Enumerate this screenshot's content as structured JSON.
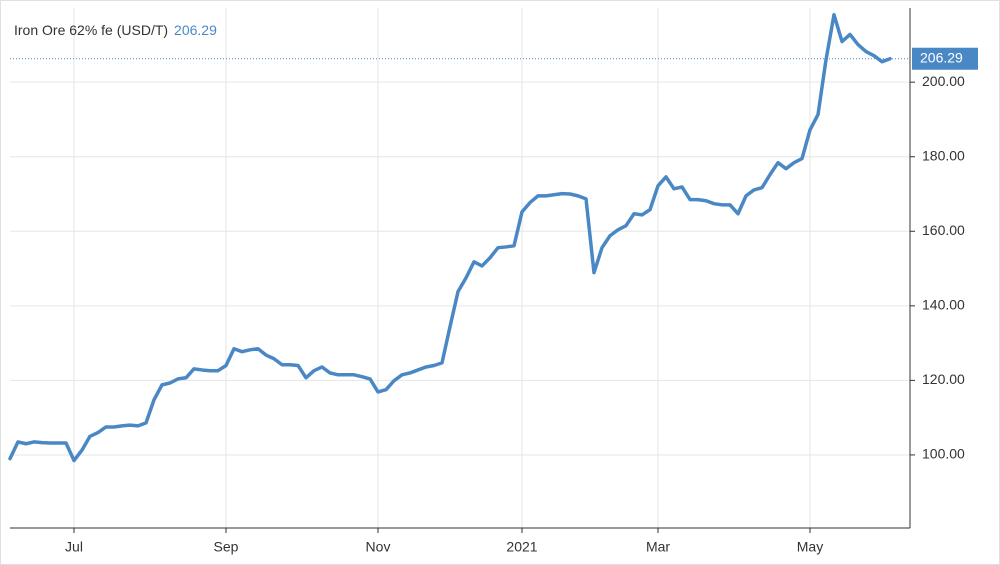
{
  "chart_data": {
    "type": "line",
    "title": "Iron Ore 62% fe (USD/T)",
    "last_value": 206.29,
    "color": "#4a88c5",
    "categories": [
      null,
      null,
      null,
      null,
      null,
      null,
      null,
      null,
      "Jul",
      null,
      null,
      null,
      null,
      null,
      null,
      null,
      null,
      null,
      null,
      null,
      null,
      null,
      null,
      null,
      null,
      null,
      null,
      "Sep",
      null,
      null,
      null,
      null,
      null,
      null,
      null,
      null,
      null,
      null,
      null,
      null,
      null,
      null,
      null,
      null,
      null,
      null,
      "Nov",
      null,
      null,
      null,
      null,
      null,
      null,
      null,
      null,
      null,
      null,
      null,
      null,
      null,
      null,
      null,
      null,
      null,
      "2021",
      null,
      null,
      null,
      null,
      null,
      null,
      null,
      null,
      null,
      null,
      null,
      null,
      null,
      null,
      null,
      null,
      "Mar",
      null,
      null,
      null,
      null,
      null,
      null,
      null,
      null,
      null,
      null,
      null,
      null,
      null,
      null,
      null,
      null,
      null,
      null,
      "May",
      null,
      null,
      null,
      null,
      null,
      null,
      null,
      null,
      null,
      null
    ],
    "values": [
      99,
      103.5,
      103,
      103.5,
      103.3,
      103.2,
      103.2,
      103.2,
      98.5,
      101.3,
      105,
      106,
      107.5,
      107.5,
      107.8,
      108,
      107.8,
      108.6,
      114.8,
      118.8,
      119.3,
      120.4,
      120.7,
      123.1,
      122.8,
      122.6,
      122.6,
      124,
      128.5,
      127.7,
      128.2,
      128.5,
      126.8,
      125.8,
      124.2,
      124.2,
      124,
      120.7,
      122.6,
      123.6,
      122,
      121.5,
      121.5,
      121.5,
      121,
      120.4,
      116.9,
      117.5,
      119.9,
      121.5,
      122,
      122.8,
      123.6,
      124,
      124.7,
      134.4,
      143.8,
      147.5,
      151.8,
      150.7,
      152.9,
      155.6,
      155.8,
      156.1,
      165.2,
      167.7,
      169.5,
      169.5,
      169.8,
      170.1,
      170,
      169.5,
      168.7,
      148.9,
      155.6,
      158.8,
      160.4,
      161.5,
      164.7,
      164.4,
      165.8,
      172.2,
      174.6,
      171.4,
      171.9,
      168.5,
      168.5,
      168.2,
      167.4,
      167.1,
      167.1,
      164.7,
      169.5,
      171.1,
      171.7,
      175.2,
      178.4,
      176.8,
      178.4,
      179.5,
      187.2,
      191.3,
      206,
      218.1,
      210.9,
      212.8,
      210.1,
      208.2,
      207.1,
      205.5,
      206.29
    ],
    "ylim": [
      80.4,
      219.9
    ],
    "yticks": [
      {
        "value": 100,
        "label": "100.00"
      },
      {
        "value": 120,
        "label": "120.00"
      },
      {
        "value": 140,
        "label": "140.00"
      },
      {
        "value": 160,
        "label": "160.00"
      },
      {
        "value": 180,
        "label": "180.00"
      },
      {
        "value": 200,
        "label": "200.00"
      }
    ],
    "grid": true
  }
}
